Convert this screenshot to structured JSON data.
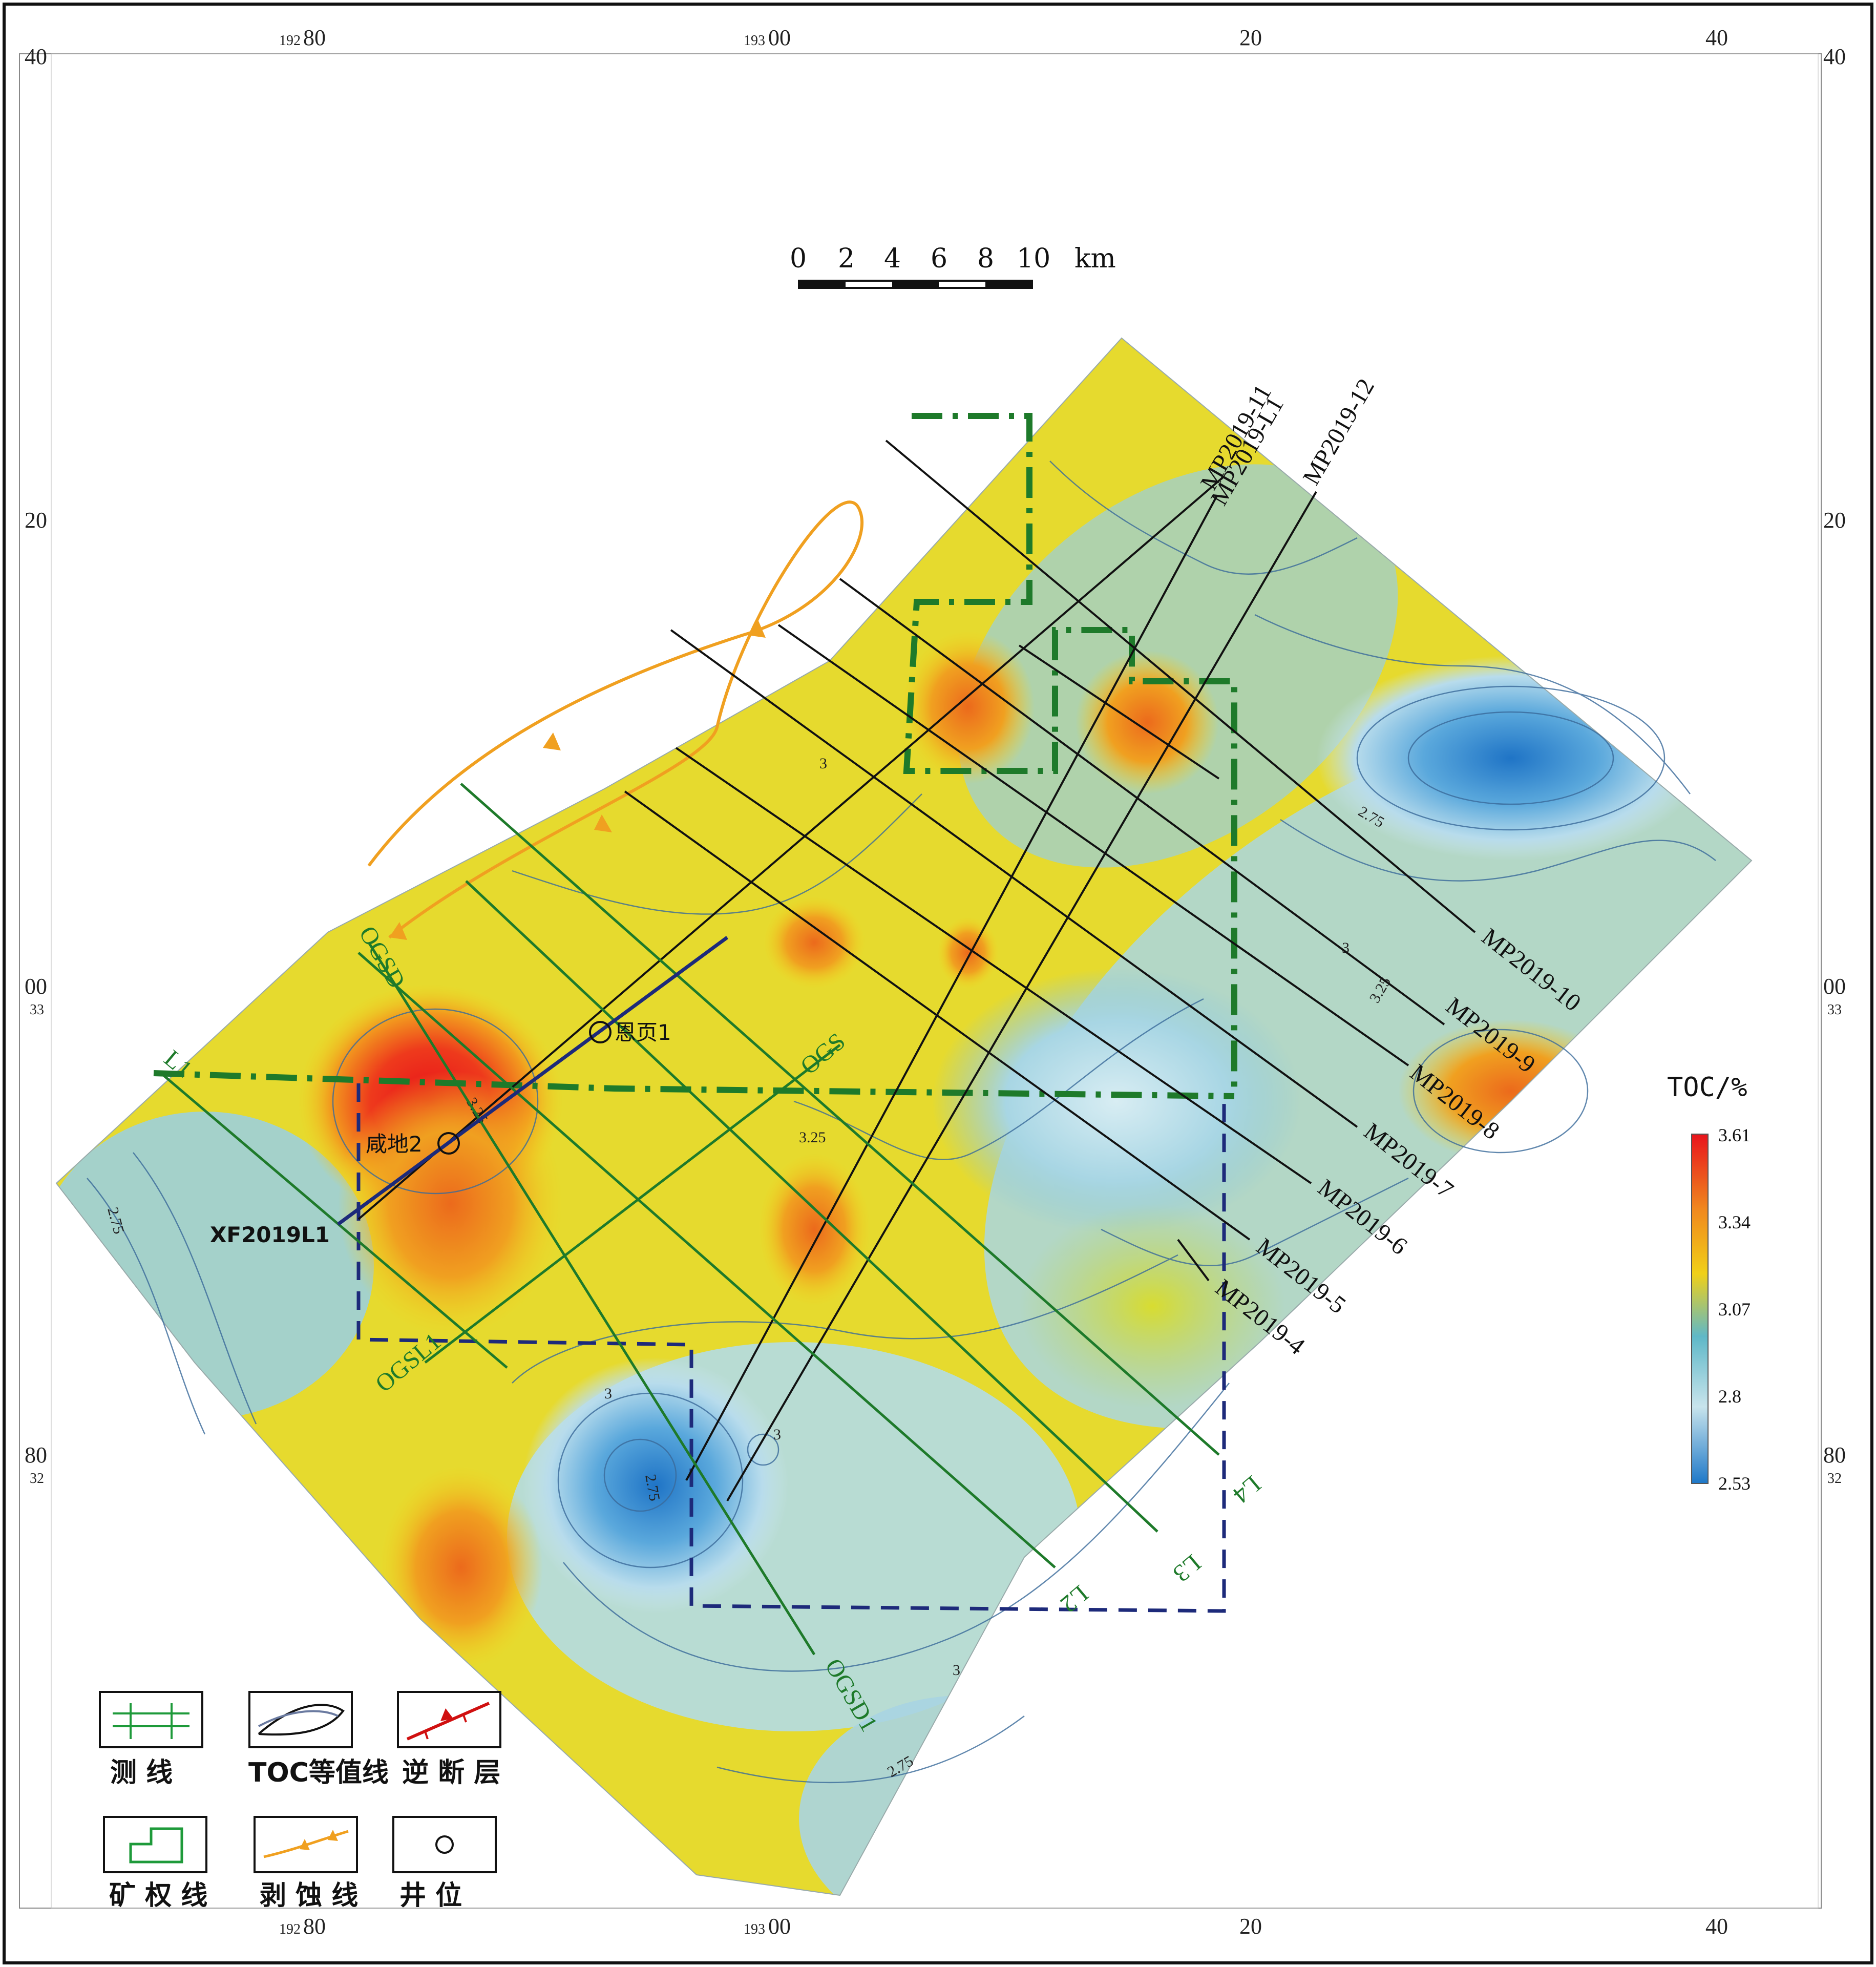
{
  "frame": {
    "top_labels": [
      {
        "small": "192",
        "big": "80"
      },
      {
        "small": "193",
        "big": "00"
      },
      {
        "small": "",
        "big": "20"
      },
      {
        "small": "",
        "big": "40"
      }
    ],
    "bottom_labels": [
      {
        "small": "192",
        "big": "80"
      },
      {
        "small": "193",
        "big": "00"
      },
      {
        "small": "",
        "big": "20"
      },
      {
        "small": "",
        "big": "40"
      }
    ],
    "left_labels": [
      {
        "big": "40",
        "small": ""
      },
      {
        "big": "20",
        "small": ""
      },
      {
        "big": "00",
        "small": "33"
      },
      {
        "big": "80",
        "small": "32"
      }
    ],
    "right_labels": [
      {
        "big": "40",
        "small": ""
      },
      {
        "big": "20",
        "small": ""
      },
      {
        "big": "00",
        "small": "33"
      },
      {
        "big": "80",
        "small": "32"
      }
    ]
  },
  "scale_bar": {
    "ticks": [
      "0",
      "2",
      "4",
      "6",
      "8",
      "10"
    ],
    "unit": "km"
  },
  "survey_lines": {
    "black": [
      "MP2019-11",
      "MP2019-L1",
      "MP2019-12",
      "MP2019-10",
      "MP2019-9",
      "MP2019-8",
      "MP2019-7",
      "MP2019-6",
      "MP2019-5",
      "MP2019-4"
    ],
    "green": [
      "L4",
      "L3",
      "L2",
      "L1",
      "OGSD1",
      "OGSL1",
      "OGSD",
      "OGS"
    ],
    "navy": "XF2019L1"
  },
  "wells": [
    {
      "name": "恩页1"
    },
    {
      "name": "咸地2"
    }
  ],
  "contour_labels": [
    "2.75",
    "3",
    "3.25",
    "3",
    "3.25",
    "2.75",
    "3",
    "2.75",
    "3",
    "2.75",
    "3.25",
    "3"
  ],
  "colorbar": {
    "title": "TOC/%",
    "ticks": [
      "3.61",
      "3.34",
      "3.07",
      "2.8",
      "2.53"
    ],
    "colors": [
      "#e8141c",
      "#f0d018",
      "#5fb8c8",
      "#c8e4ec",
      "#1e78c8"
    ]
  },
  "legend": [
    {
      "label": "测 线",
      "icon": "survey-line-icon"
    },
    {
      "label": "TOC等值线",
      "icon": "contour-line-icon"
    },
    {
      "label": "逆 断 层",
      "icon": "thrust-fault-icon"
    },
    {
      "label": "矿 权 线",
      "icon": "mining-right-icon"
    },
    {
      "label": "剥 蚀 线",
      "icon": "erosion-line-icon"
    },
    {
      "label": "井   位",
      "icon": "well-icon"
    }
  ]
}
